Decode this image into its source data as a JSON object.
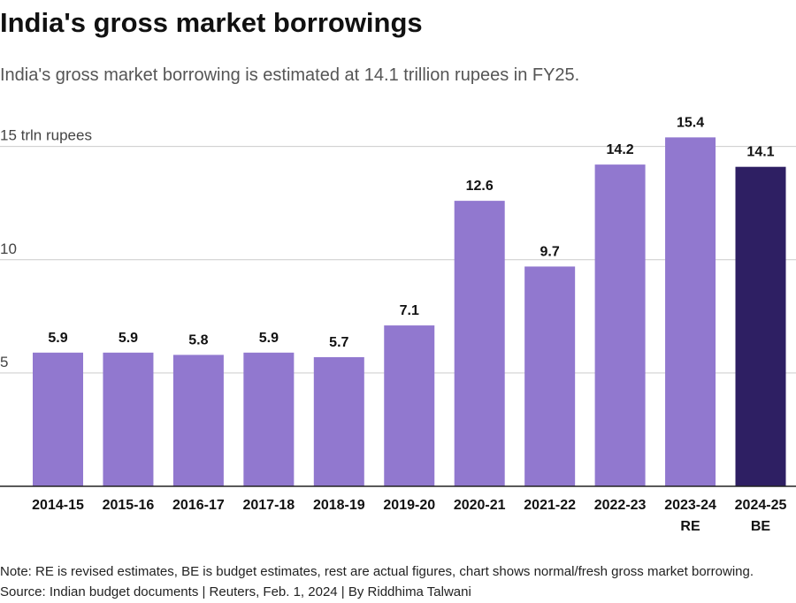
{
  "chart_data": {
    "type": "bar",
    "title": "India's gross market borrowings",
    "subtitle": "India's gross market borrowing is estimated at 14.1 trillion rupees in FY25.",
    "categories": [
      "2014-15",
      "2015-16",
      "2016-17",
      "2017-18",
      "2018-19",
      "2019-20",
      "2020-21",
      "2021-22",
      "2022-23",
      "2023-24 RE",
      "2024-25 BE"
    ],
    "values": [
      5.9,
      5.9,
      5.8,
      5.9,
      5.7,
      7.1,
      12.6,
      9.7,
      14.2,
      15.4,
      14.1
    ],
    "colors": [
      "#9178cf",
      "#9178cf",
      "#9178cf",
      "#9178cf",
      "#9178cf",
      "#9178cf",
      "#9178cf",
      "#9178cf",
      "#9178cf",
      "#9178cf",
      "#2e1f63"
    ],
    "ylim": [
      0,
      16
    ],
    "yticks": [
      5,
      10,
      {
        "value": 15,
        "label": "15 trln rupees"
      }
    ],
    "grid": true,
    "note": "Note: RE is revised estimates, BE is budget estimates, rest are actual figures, chart shows normal/fresh gross market borrowing.",
    "source": "Source: Indian budget documents | Reuters, Feb. 1, 2024 | By Riddhima Talwani"
  }
}
